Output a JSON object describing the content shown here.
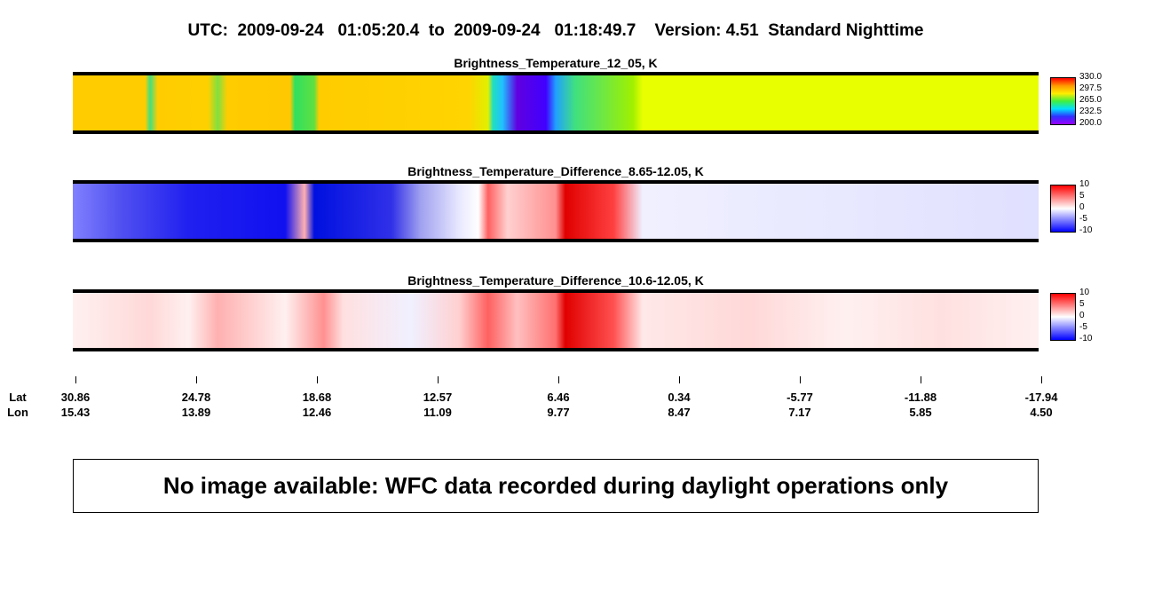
{
  "header": {
    "title": "UTC:  2009-09-24   01:05:20.4  to  2009-09-24   01:18:49.7    Version: 4.51  Standard Nighttime"
  },
  "panels": [
    {
      "title": "Brightness_Temperature_12_05, K",
      "colorbar_labels": [
        "330.0",
        "297.5",
        "265.0",
        "232.5",
        "200.0"
      ]
    },
    {
      "title": "Brightness_Temperature_Difference_8.65-12.05, K",
      "colorbar_labels": [
        "10",
        "5",
        "0",
        "-5",
        "-10"
      ]
    },
    {
      "title": "Brightness_Temperature_Difference_10.6-12.05, K",
      "colorbar_labels": [
        "10",
        "5",
        "0",
        "-5",
        "-10"
      ]
    }
  ],
  "axis": {
    "lat_label": "Lat",
    "lon_label": "Lon",
    "lat": [
      "30.86",
      "24.78",
      "18.68",
      "12.57",
      "6.46",
      "0.34",
      "-5.77",
      "-11.88",
      "-17.94"
    ],
    "lon": [
      "15.43",
      "13.89",
      "12.46",
      "11.09",
      "9.77",
      "8.47",
      "7.17",
      "5.85",
      "4.50"
    ]
  },
  "notice": "No image available: WFC data recorded during daylight operations only"
}
